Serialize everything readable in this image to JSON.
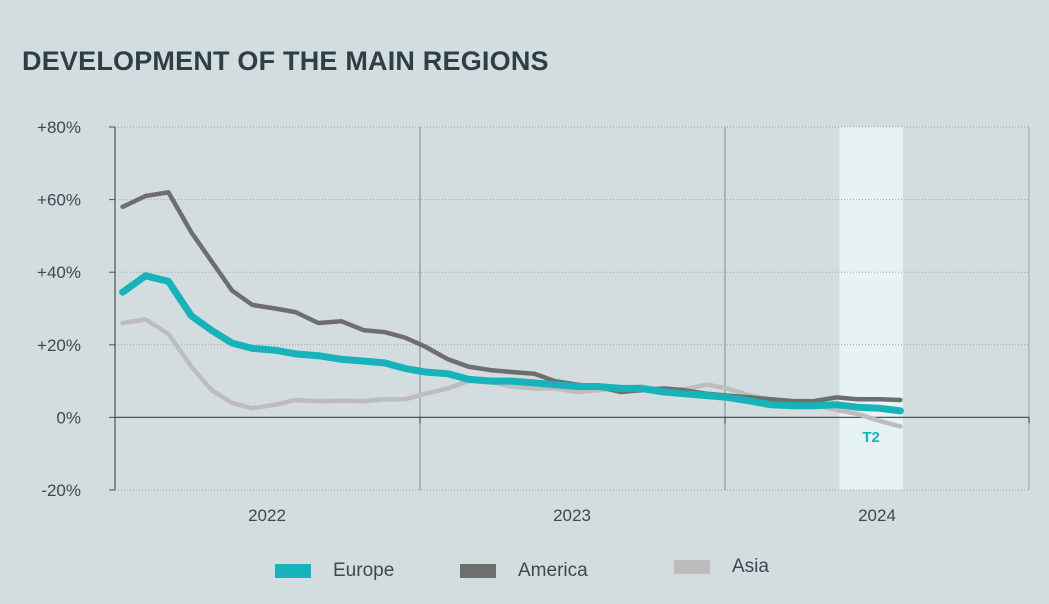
{
  "title": "DEVELOPMENT OF THE MAIN REGIONS",
  "chart_data": {
    "type": "line",
    "title": "DEVELOPMENT OF THE MAIN REGIONS",
    "xlabel": "",
    "ylabel": "",
    "x_tick_labels": [
      "2022",
      "2023",
      "2024"
    ],
    "y_ticks": [
      80,
      60,
      40,
      20,
      0,
      -20
    ],
    "y_tick_labels": [
      "+80%",
      "+60%",
      "+40%",
      "+20%",
      "0%",
      "-20%"
    ],
    "ylim": [
      -20,
      80
    ],
    "grid": true,
    "legend_position": "bottom",
    "highlight": {
      "label": "T2",
      "start_month": 28.5,
      "end_month": 31,
      "color": "#e6f2f4"
    },
    "x_unit": "month index (0 = start of 2022, 12 = start of 2023, 24 = start of 2024)",
    "series": [
      {
        "name": "Asia",
        "color": "#bdbdbd",
        "x": [
          0.3,
          1.2,
          2.1,
          3.0,
          3.8,
          4.6,
          5.4,
          6.3,
          7.1,
          8.0,
          8.9,
          9.8,
          10.6,
          11.4,
          12.2,
          13.1,
          13.9,
          14.8,
          15.6,
          16.5,
          17.3,
          18.2,
          19.0,
          19.9,
          20.7,
          21.6,
          22.4,
          23.3,
          24.1,
          25.0,
          25.8,
          26.7,
          27.5,
          28.4,
          29.2,
          30.1,
          30.9
        ],
        "values": [
          26,
          27,
          23,
          14,
          7.5,
          4,
          2.5,
          3.5,
          4.8,
          4.5,
          4.6,
          4.5,
          5,
          5,
          6.5,
          8,
          10,
          9.8,
          8.5,
          8,
          8,
          7,
          7.5,
          8,
          8.5,
          7.5,
          7.8,
          9,
          8,
          6,
          5,
          4.5,
          3.5,
          2,
          1,
          -1,
          -2.5
        ]
      },
      {
        "name": "America",
        "color": "#6e6e6e",
        "x": [
          0.3,
          1.2,
          2.1,
          3.0,
          3.8,
          4.6,
          5.4,
          6.3,
          7.1,
          8.0,
          8.9,
          9.8,
          10.6,
          11.4,
          12.2,
          13.1,
          13.9,
          14.8,
          15.6,
          16.5,
          17.3,
          18.2,
          19.0,
          19.9,
          20.7,
          21.6,
          22.4,
          23.3,
          24.1,
          25.0,
          25.8,
          26.7,
          27.5,
          28.4,
          29.2,
          30.1,
          30.9
        ],
        "values": [
          58,
          61,
          62,
          51,
          43,
          35,
          31,
          30,
          29,
          26,
          26.5,
          24,
          23.5,
          22,
          19.5,
          16,
          14,
          13,
          12.5,
          12,
          10,
          9,
          8.5,
          7,
          7.5,
          8,
          7.5,
          6.5,
          6,
          5.5,
          5,
          4.5,
          4.5,
          5.5,
          5,
          5,
          4.8
        ]
      },
      {
        "name": "Europe",
        "color": "#17b3ba",
        "x": [
          0.3,
          1.2,
          2.1,
          3.0,
          3.8,
          4.6,
          5.4,
          6.3,
          7.1,
          8.0,
          8.9,
          9.8,
          10.6,
          11.4,
          12.2,
          13.1,
          13.9,
          14.8,
          15.6,
          16.5,
          17.3,
          18.2,
          19.0,
          19.9,
          20.7,
          21.6,
          22.4,
          23.3,
          24.1,
          25.0,
          25.8,
          26.7,
          27.5,
          28.4,
          29.2,
          30.1,
          30.9
        ],
        "values": [
          34.5,
          39,
          37.5,
          28,
          24,
          20.5,
          19,
          18.5,
          17.5,
          17,
          16,
          15.5,
          15,
          13.5,
          12.5,
          12,
          10.5,
          10,
          10,
          9.5,
          9,
          8.5,
          8.5,
          8,
          8,
          7,
          6.5,
          6,
          5.5,
          4.5,
          3.5,
          3.2,
          3.2,
          3.5,
          2.8,
          2.5,
          1.8
        ]
      }
    ]
  },
  "legend": [
    {
      "name": "Europe",
      "color": "#17b3ba"
    },
    {
      "name": "America",
      "color": "#6e6e6e"
    },
    {
      "name": "Asia",
      "color": "#bdbdbd"
    }
  ]
}
